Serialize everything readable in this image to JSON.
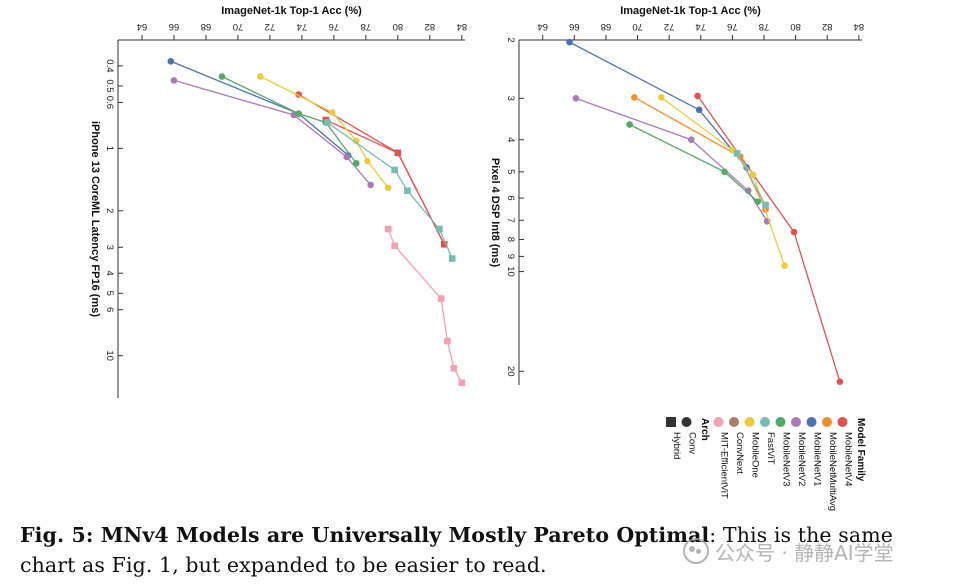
{
  "chart_data": [
    {
      "type": "line",
      "id": "left",
      "xlabel": "ImageNet-1k Top-1 Acc (%)",
      "ylabel": "iPhone 13 CoreML Latency FP16 (ms)",
      "xlim": [
        62.5,
        84.2
      ],
      "x_ticks": [
        64,
        66,
        68,
        70,
        72,
        74,
        76,
        78,
        80,
        82,
        84
      ],
      "ylim": [
        0.3,
        16
      ],
      "y_scale": "log",
      "y_ticks": [
        0.4,
        0.5,
        0.6,
        1,
        2,
        3,
        4,
        5,
        6,
        10
      ],
      "series": [
        {
          "name": "MobileNetV4",
          "arch": "Conv",
          "color": "#e05252",
          "points": [
            [
              73.8,
              0.55
            ],
            [
              80.0,
              1.05
            ],
            [
              82.9,
              2.9
            ]
          ]
        },
        {
          "name": "MobileNetV4",
          "arch": "Hybrid",
          "color": "#e05252",
          "points": [
            [
              75.5,
              0.73
            ],
            [
              80.0,
              1.05
            ],
            [
              82.9,
              2.9
            ]
          ]
        },
        {
          "name": "MobileNetV1",
          "arch": "Conv",
          "color": "#4c72b0",
          "points": [
            [
              65.8,
              0.38
            ],
            [
              73.8,
              0.68
            ],
            [
              76.9,
              1.08
            ]
          ]
        },
        {
          "name": "MobileNetV2",
          "arch": "Conv",
          "color": "#a77bb8",
          "points": [
            [
              66.0,
              0.47
            ],
            [
              73.5,
              0.69
            ],
            [
              76.8,
              1.1
            ],
            [
              78.3,
              1.5
            ]
          ]
        },
        {
          "name": "MobileNetV3",
          "arch": "Conv",
          "color": "#55a868",
          "points": [
            [
              69.0,
              0.45
            ],
            [
              73.8,
              0.68
            ],
            [
              75.5,
              0.75
            ],
            [
              77.4,
              1.18
            ]
          ]
        },
        {
          "name": "MobileOne",
          "arch": "Conv",
          "color": "#eccb3f",
          "points": [
            [
              71.4,
              0.45
            ],
            [
              75.9,
              0.67
            ],
            [
              77.4,
              0.92
            ],
            [
              78.1,
              1.15
            ],
            [
              79.4,
              1.55
            ]
          ]
        },
        {
          "name": "FastViT",
          "arch": "Hybrid",
          "color": "#78bcb4",
          "points": [
            [
              75.6,
              0.75
            ],
            [
              79.8,
              1.27
            ],
            [
              80.6,
              1.6
            ],
            [
              82.6,
              2.45
            ],
            [
              83.4,
              3.4
            ]
          ]
        },
        {
          "name": "MIT-EfficientViT",
          "arch": "Hybrid",
          "color": "#f4a0b0",
          "points": [
            [
              79.4,
              2.45
            ],
            [
              79.8,
              2.95
            ],
            [
              82.7,
              5.3
            ],
            [
              83.1,
              8.5
            ],
            [
              83.5,
              11.5
            ],
            [
              84.0,
              13.5
            ]
          ]
        }
      ]
    },
    {
      "type": "line",
      "id": "right",
      "xlabel": "ImageNet-1k Top-1 Acc (%)",
      "ylabel": "Pixel 4 DSP Int8 (ms)",
      "xlim": [
        62.5,
        84.2
      ],
      "x_ticks": [
        64,
        66,
        68,
        70,
        72,
        74,
        76,
        78,
        80,
        82,
        84
      ],
      "ylim": [
        2,
        22
      ],
      "y_scale": "log",
      "y_ticks": [
        2,
        3,
        4,
        5,
        6,
        7,
        8,
        9,
        10,
        20
      ],
      "series": [
        {
          "name": "MobileNetV4",
          "arch": "Conv",
          "color": "#e05252",
          "points": [
            [
              73.8,
              2.95
            ],
            [
              79.9,
              7.6
            ],
            [
              82.8,
              21.5
            ]
          ]
        },
        {
          "name": "MobileNetMultiAvg",
          "arch": "Conv",
          "color": "#f28e2b",
          "points": [
            [
              69.8,
              2.98
            ],
            [
              76.5,
              4.5
            ],
            [
              78.1,
              6.5
            ]
          ]
        },
        {
          "name": "MobileNetV1",
          "arch": "Conv",
          "color": "#4c72b0",
          "points": [
            [
              65.7,
              2.03
            ],
            [
              73.9,
              3.25
            ],
            [
              76.9,
              4.85
            ]
          ]
        },
        {
          "name": "MobileNetV2",
          "arch": "Conv",
          "color": "#a77bb8",
          "points": [
            [
              66.1,
              3.0
            ],
            [
              73.4,
              4.0
            ],
            [
              77.0,
              5.7
            ],
            [
              78.2,
              7.05
            ]
          ]
        },
        {
          "name": "MobileNetV3",
          "arch": "Conv",
          "color": "#55a868",
          "points": [
            [
              69.5,
              3.6
            ],
            [
              75.5,
              5.0
            ],
            [
              77.6,
              6.15
            ]
          ]
        },
        {
          "name": "MobileOne",
          "arch": "Conv",
          "color": "#eccb3f",
          "points": [
            [
              71.5,
              2.98
            ],
            [
              76.0,
              4.3
            ],
            [
              77.3,
              5.1
            ],
            [
              79.3,
              9.6
            ]
          ]
        },
        {
          "name": "FastViT",
          "arch": "Hybrid",
          "color": "#78bcb4",
          "points": [
            [
              76.3,
              4.4
            ],
            [
              78.1,
              6.3
            ]
          ]
        }
      ]
    }
  ],
  "legend": {
    "family_title": "Model Family",
    "families": [
      {
        "label": "MobileNetV4",
        "color": "#e05252"
      },
      {
        "label": "MobileNetMultiAvg",
        "color": "#f28e2b"
      },
      {
        "label": "MobileNetV1",
        "color": "#4c72b0"
      },
      {
        "label": "MobileNetV2",
        "color": "#a77bb8"
      },
      {
        "label": "MobileNetV3",
        "color": "#55a868"
      },
      {
        "label": "FastViT",
        "color": "#78bcb4"
      },
      {
        "label": "MobileOne",
        "color": "#eccb3f"
      },
      {
        "label": "ConvNext",
        "color": "#a9816a"
      },
      {
        "label": "MIT-EfficientViT",
        "color": "#f4a0b0"
      }
    ],
    "arch_title": "Arch",
    "archs": [
      {
        "label": "Conv",
        "marker": "circle"
      },
      {
        "label": "Hybrid",
        "marker": "square"
      }
    ],
    "marker_color": "#333333"
  },
  "caption": {
    "label": "Fig. 5: MNv4 Models are Universally Mostly Pareto Optimal",
    "text": ": This is the same chart as Fig. 1, but expanded to be easier to read."
  },
  "watermark": "公众号 · 静静AI学堂"
}
